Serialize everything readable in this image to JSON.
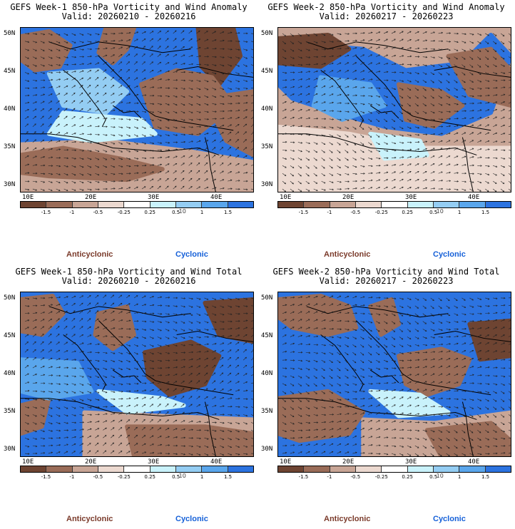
{
  "colors": {
    "strong_anti": "#6e4432",
    "mid_anti": "#9a6c58",
    "weak_anti": "#c8a596",
    "faint_anti": "#ecd9d0",
    "neutral": "#ffffff",
    "faint_cyc": "#c9f2fb",
    "weak_cyc": "#94cdf3",
    "mid_cyc": "#5aa6ec",
    "strong_cyc": "#2c73e0",
    "anticyclonic_label": "#7a3a2a",
    "cyclonic_label": "#1560d8"
  },
  "colorbar": {
    "ticks": [
      "-1.5",
      "-1",
      "-0.5",
      "-0.25",
      "0.25",
      "0.5",
      "1",
      "1.5"
    ],
    "unit_marker": "10"
  },
  "axes": {
    "lat_labels": [
      "50N",
      "45N",
      "40N",
      "35N",
      "30N"
    ],
    "lon_labels": [
      "10E",
      "20E",
      "30E",
      "40E"
    ]
  },
  "legend": {
    "anticyclonic": "Anticyclonic",
    "cyclonic": "Cyclonic"
  },
  "panels": [
    {
      "title": "GEFS Week-1 850-hPa Vorticity and Wind Anomaly",
      "valid": "Valid: 20260210 - 20260216"
    },
    {
      "title": "GEFS Week-2 850-hPa Vorticity and Wind Anomaly",
      "valid": "Valid: 20260217 - 20260223"
    },
    {
      "title": "GEFS Week-1 850-hPa Vorticity and Wind Total",
      "valid": "Valid: 20260210 - 20260216"
    },
    {
      "title": "GEFS Week-2 850-hPa Vorticity and Wind Total",
      "valid": "Valid: 20260217 - 20260223"
    }
  ]
}
